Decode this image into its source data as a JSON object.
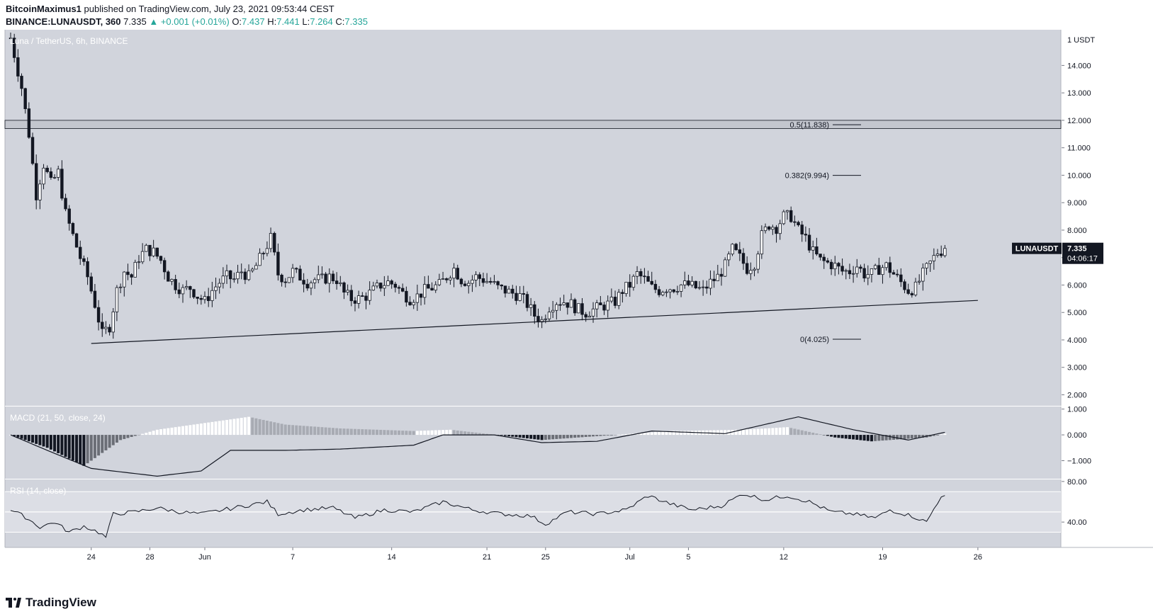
{
  "header": {
    "author": "BitcoinMaximus1",
    "published": "published on TradingView.com, July 23, 2021 09:53:44 CEST",
    "symbol": "BINANCE:LUNAUSDT, 360",
    "last": "7.335",
    "arrow": "▲",
    "change": "+0.001 (+0.01%)",
    "o_label": "O:",
    "o": "7.437",
    "h_label": "H:",
    "h": "7.441",
    "l_label": "L:",
    "l": "7.264",
    "c_label": "C:",
    "c": "7.335"
  },
  "main_pane": {
    "pair_label": "Luna / TetherUS, 6h, BINANCE",
    "price_badge": {
      "symbol": "LUNAUSDT",
      "price": "7.335",
      "countdown": "04:06:17"
    }
  },
  "macd_label": "MACD (21, 50, close, 24)",
  "rsi_label": "RSI (14, close)",
  "logo_text": "TradingView",
  "colors": {
    "pane_bg": "#d1d4dc",
    "up": "#26a69a",
    "candle": "#131722",
    "fib_line": "#131722"
  },
  "chart_data": [
    {
      "type": "candlestick",
      "symbol": "LUNAUSDT",
      "interval": "6h",
      "yaxis": {
        "ticks": [
          "2.000",
          "3.000",
          "4.000",
          "5.000",
          "6.000",
          "7.000",
          "8.000",
          "9.000",
          "10.000",
          "11.000",
          "12.000",
          "13.000",
          "14.000"
        ],
        "top_label": "1 USDT",
        "ylim": [
          1.6,
          15.3
        ]
      },
      "xaxis": {
        "ticks": [
          "24",
          "28",
          "Jun",
          "7",
          "14",
          "21",
          "25",
          "Jul",
          "5",
          "12",
          "19",
          "26"
        ]
      },
      "close_path": [
        [
          0,
          15.0
        ],
        [
          3,
          13.2
        ],
        [
          5,
          11.5
        ],
        [
          7,
          9.3
        ],
        [
          9,
          10.4
        ],
        [
          11,
          9.7
        ],
        [
          13,
          10.1
        ],
        [
          15,
          8.6
        ],
        [
          17,
          7.8
        ],
        [
          19,
          7.0
        ],
        [
          21,
          6.3
        ],
        [
          23,
          5.3
        ],
        [
          25,
          4.2
        ],
        [
          27,
          4.5
        ],
        [
          29,
          5.8
        ],
        [
          31,
          6.5
        ],
        [
          33,
          6.3
        ],
        [
          35,
          7.0
        ],
        [
          37,
          7.3
        ],
        [
          39,
          7.2
        ],
        [
          41,
          6.9
        ],
        [
          43,
          6.3
        ],
        [
          45,
          6.0
        ],
        [
          47,
          5.8
        ],
        [
          49,
          5.9
        ],
        [
          51,
          5.6
        ],
        [
          53,
          5.4
        ],
        [
          55,
          5.8
        ],
        [
          57,
          6.1
        ],
        [
          59,
          6.3
        ],
        [
          61,
          6.2
        ],
        [
          63,
          6.5
        ],
        [
          65,
          6.3
        ],
        [
          67,
          6.7
        ],
        [
          69,
          7.2
        ],
        [
          71,
          7.7
        ],
        [
          73,
          6.4
        ],
        [
          75,
          6.2
        ],
        [
          77,
          6.5
        ],
        [
          79,
          6.3
        ],
        [
          81,
          6.1
        ],
        [
          83,
          6.2
        ],
        [
          85,
          6.2
        ],
        [
          87,
          6.3
        ],
        [
          89,
          6.2
        ],
        [
          91,
          5.7
        ],
        [
          93,
          5.5
        ],
        [
          95,
          5.5
        ],
        [
          97,
          5.6
        ],
        [
          99,
          5.8
        ],
        [
          101,
          6.0
        ],
        [
          103,
          6.1
        ],
        [
          105,
          6.0
        ],
        [
          107,
          5.7
        ],
        [
          109,
          5.5
        ],
        [
          111,
          5.6
        ],
        [
          113,
          5.8
        ],
        [
          115,
          5.9
        ],
        [
          117,
          6.0
        ],
        [
          119,
          6.3
        ],
        [
          121,
          6.6
        ],
        [
          123,
          6.2
        ],
        [
          125,
          6.1
        ],
        [
          127,
          6.3
        ],
        [
          129,
          6.2
        ],
        [
          131,
          6.1
        ],
        [
          133,
          5.9
        ],
        [
          135,
          5.8
        ],
        [
          137,
          5.7
        ],
        [
          139,
          5.6
        ],
        [
          141,
          5.3
        ],
        [
          143,
          4.9
        ],
        [
          145,
          4.7
        ],
        [
          147,
          5.2
        ],
        [
          149,
          5.4
        ],
        [
          151,
          5.4
        ],
        [
          153,
          5.3
        ],
        [
          155,
          5.1
        ],
        [
          157,
          5.0
        ],
        [
          159,
          5.1
        ],
        [
          161,
          5.2
        ],
        [
          163,
          5.3
        ],
        [
          165,
          5.4
        ],
        [
          167,
          5.8
        ],
        [
          169,
          6.0
        ],
        [
          171,
          6.4
        ],
        [
          173,
          6.2
        ],
        [
          175,
          5.9
        ],
        [
          177,
          5.8
        ],
        [
          179,
          5.9
        ],
        [
          181,
          5.9
        ],
        [
          183,
          6.0
        ],
        [
          185,
          6.0
        ],
        [
          187,
          5.9
        ],
        [
          189,
          5.8
        ],
        [
          191,
          6.1
        ],
        [
          193,
          6.3
        ],
        [
          195,
          6.7
        ],
        [
          197,
          7.3
        ],
        [
          199,
          7.0
        ],
        [
          201,
          6.6
        ],
        [
          203,
          6.8
        ],
        [
          205,
          7.8
        ],
        [
          207,
          8.2
        ],
        [
          209,
          8.1
        ],
        [
          211,
          8.5
        ],
        [
          213,
          8.5
        ],
        [
          215,
          8.0
        ],
        [
          217,
          7.7
        ],
        [
          219,
          7.2
        ],
        [
          221,
          6.9
        ],
        [
          223,
          6.8
        ],
        [
          225,
          6.7
        ],
        [
          227,
          6.5
        ],
        [
          229,
          6.5
        ],
        [
          231,
          6.7
        ],
        [
          233,
          6.4
        ],
        [
          235,
          6.4
        ],
        [
          237,
          6.6
        ],
        [
          239,
          6.7
        ],
        [
          241,
          6.4
        ],
        [
          243,
          6.1
        ],
        [
          245,
          5.8
        ],
        [
          247,
          5.9
        ],
        [
          249,
          6.4
        ],
        [
          251,
          6.8
        ],
        [
          253,
          7.2
        ],
        [
          255,
          7.3
        ]
      ],
      "support_line": {
        "from": [
          22,
          3.87
        ],
        "to": [
          264,
          5.44
        ]
      },
      "resistance_zone": [
        11.7,
        12.0
      ],
      "fib_levels": [
        {
          "label": "0.5(11.838)",
          "value": 11.838
        },
        {
          "label": "0.382(9.994)",
          "value": 9.994
        },
        {
          "label": "0(4.025)",
          "value": 4.025
        }
      ],
      "last_price": 7.335
    },
    {
      "type": "macd",
      "params": "21, 50, close, 24",
      "yaxis": {
        "ticks": [
          "1.000",
          "0.000",
          "−1.000"
        ],
        "ylim": [
          -1.7,
          1.1
        ]
      },
      "signal_path": [
        [
          0,
          0
        ],
        [
          10,
          -0.6
        ],
        [
          22,
          -1.3
        ],
        [
          40,
          -1.6
        ],
        [
          52,
          -1.4
        ],
        [
          60,
          -0.6
        ],
        [
          75,
          -0.6
        ],
        [
          90,
          -0.55
        ],
        [
          110,
          -0.4
        ],
        [
          118,
          0.0
        ],
        [
          132,
          0.0
        ],
        [
          145,
          -0.3
        ],
        [
          160,
          -0.25
        ],
        [
          175,
          0.15
        ],
        [
          195,
          0.05
        ],
        [
          215,
          0.7
        ],
        [
          230,
          0.2
        ],
        [
          245,
          -0.2
        ],
        [
          255,
          0.1
        ]
      ],
      "histogram_path": [
        [
          0,
          0
        ],
        [
          10,
          -0.5
        ],
        [
          20,
          -1.2
        ],
        [
          30,
          -0.2
        ],
        [
          40,
          0.2
        ],
        [
          50,
          0.4
        ],
        [
          65,
          0.7
        ],
        [
          75,
          0.4
        ],
        [
          90,
          0.25
        ],
        [
          110,
          0.15
        ],
        [
          120,
          0.2
        ],
        [
          145,
          -0.2
        ],
        [
          165,
          0.0
        ],
        [
          180,
          0.15
        ],
        [
          200,
          0.2
        ],
        [
          212,
          0.3
        ],
        [
          225,
          -0.1
        ],
        [
          235,
          -0.25
        ],
        [
          250,
          -0.1
        ],
        [
          255,
          0.05
        ]
      ]
    },
    {
      "type": "rsi",
      "params": "14, close",
      "yaxis": {
        "ticks": [
          "80.00",
          "40.00"
        ],
        "ylim": [
          15,
          82
        ],
        "band": [
          30,
          70
        ]
      },
      "values": [
        [
          0,
          52
        ],
        [
          4,
          45
        ],
        [
          8,
          35
        ],
        [
          12,
          40
        ],
        [
          16,
          30
        ],
        [
          20,
          36
        ],
        [
          24,
          30
        ],
        [
          26,
          25
        ],
        [
          28,
          48
        ],
        [
          34,
          50
        ],
        [
          40,
          54
        ],
        [
          46,
          50
        ],
        [
          52,
          48
        ],
        [
          58,
          52
        ],
        [
          64,
          56
        ],
        [
          70,
          60
        ],
        [
          73,
          48
        ],
        [
          80,
          52
        ],
        [
          88,
          54
        ],
        [
          94,
          44
        ],
        [
          102,
          52
        ],
        [
          110,
          50
        ],
        [
          118,
          60
        ],
        [
          126,
          52
        ],
        [
          134,
          48
        ],
        [
          142,
          46
        ],
        [
          146,
          38
        ],
        [
          152,
          50
        ],
        [
          160,
          48
        ],
        [
          168,
          52
        ],
        [
          174,
          66
        ],
        [
          180,
          58
        ],
        [
          186,
          52
        ],
        [
          194,
          56
        ],
        [
          200,
          68
        ],
        [
          206,
          62
        ],
        [
          212,
          66
        ],
        [
          218,
          60
        ],
        [
          224,
          50
        ],
        [
          230,
          48
        ],
        [
          236,
          44
        ],
        [
          240,
          52
        ],
        [
          246,
          46
        ],
        [
          250,
          40
        ],
        [
          254,
          66
        ],
        [
          256,
          64
        ]
      ]
    }
  ]
}
